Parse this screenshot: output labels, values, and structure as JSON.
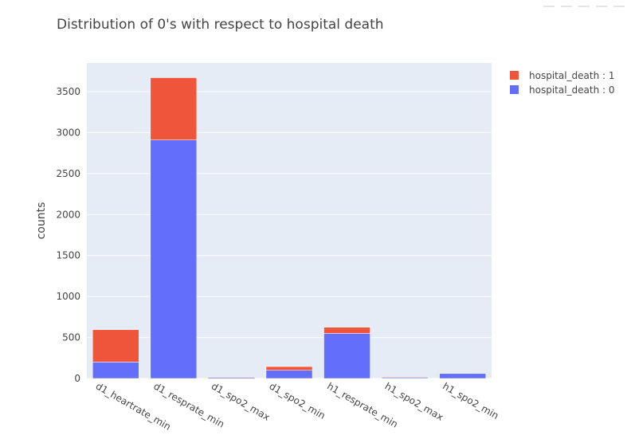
{
  "chart_data": {
    "type": "bar",
    "barmode": "stack",
    "title": "Distribution of 0's with respect to hospital death",
    "xlabel": "",
    "ylabel": "counts",
    "categories": [
      "d1_heartrate_min",
      "d1_resprate_min",
      "d1_spo2_max",
      "d1_spo2_min",
      "h1_resprate_min",
      "h1_spo2_max",
      "h1_spo2_min"
    ],
    "series": [
      {
        "name": "hospital_death : 0",
        "color": "#636efa",
        "values": [
          200,
          2910,
          5,
          100,
          550,
          10,
          60
        ]
      },
      {
        "name": "hospital_death : 1",
        "color": "#ef553b",
        "values": [
          395,
          760,
          2,
          45,
          75,
          2,
          0
        ]
      }
    ],
    "ylim": [
      0,
      3850
    ],
    "yticks": [
      0,
      500,
      1000,
      1500,
      2000,
      2500,
      3000,
      3500
    ],
    "ytick_labels": [
      "0",
      "500",
      "1000",
      "1500",
      "2000",
      "2500",
      "3000",
      "3500"
    ],
    "grid": true,
    "legend_position": "top-right",
    "legend_order": [
      "hospital_death : 1",
      "hospital_death : 0"
    ],
    "plot_bgcolor": "#e5ecf6"
  }
}
